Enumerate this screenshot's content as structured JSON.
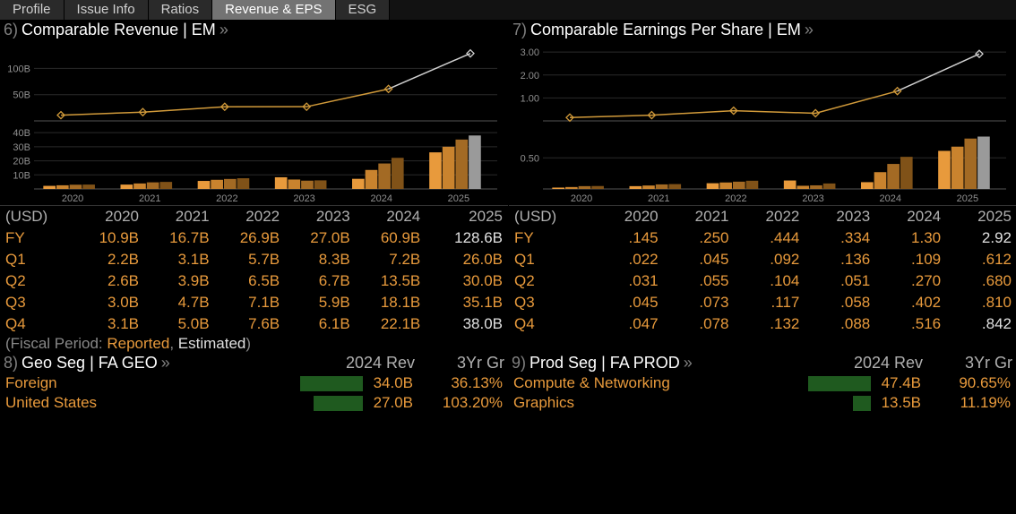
{
  "tabs": [
    {
      "label": "Profile",
      "active": false
    },
    {
      "label": "Issue Info",
      "active": false
    },
    {
      "label": "Ratios",
      "active": false
    },
    {
      "label": "Revenue & EPS",
      "active": true
    },
    {
      "label": "ESG",
      "active": false
    }
  ],
  "note_prefix": "(Fiscal Period: ",
  "note_reported": "Reported",
  "note_sep": ", ",
  "note_estimated": "Estimated",
  "note_suffix": ")",
  "rev": {
    "num": "6)",
    "title": "Comparable Revenue | EM",
    "line_chart": {
      "ytick_labels": [
        "50B",
        "100B"
      ],
      "ytick_vals": [
        50,
        100
      ],
      "ymax": 140,
      "years": [
        "2020",
        "2021",
        "2022",
        "2023",
        "2024",
        "2025"
      ],
      "values": [
        10.9,
        16.7,
        26.9,
        27.0,
        60.9,
        128.6
      ],
      "line_color": "#d19a3a",
      "est_color": "#d0d0d0",
      "est_from_index": 4
    },
    "bar_chart": {
      "ytick_labels": [
        "10B",
        "20B",
        "30B",
        "40B"
      ],
      "ytick_vals": [
        10,
        20,
        30,
        40
      ],
      "ymax": 42,
      "years": [
        "2020",
        "2021",
        "2022",
        "2023",
        "2024",
        "2025"
      ],
      "quarters": [
        [
          2.2,
          2.6,
          3.0,
          3.1
        ],
        [
          3.1,
          3.9,
          4.7,
          5.0
        ],
        [
          5.7,
          6.5,
          7.1,
          7.6
        ],
        [
          8.3,
          6.7,
          5.9,
          6.1
        ],
        [
          7.2,
          13.5,
          18.1,
          22.1
        ],
        [
          26.0,
          30.0,
          35.1,
          38.0
        ]
      ],
      "est_flags": [
        [
          0,
          0,
          0,
          0
        ],
        [
          0,
          0,
          0,
          0
        ],
        [
          0,
          0,
          0,
          0
        ],
        [
          0,
          0,
          0,
          0
        ],
        [
          0,
          0,
          0,
          0
        ],
        [
          0,
          0,
          0,
          1
        ]
      ],
      "colors": [
        "#e89a3c",
        "#c9832e",
        "#a36a24",
        "#805218"
      ],
      "est_color": "#9a9a9a"
    },
    "table": {
      "usd": "(USD)",
      "headers": [
        "2020",
        "2021",
        "2022",
        "2023",
        "2024",
        "2025"
      ],
      "rows": [
        {
          "label": "FY",
          "vals": [
            "10.9B",
            "16.7B",
            "26.9B",
            "27.0B",
            "60.9B",
            "128.6B"
          ],
          "est": [
            0,
            0,
            0,
            0,
            0,
            1
          ]
        },
        {
          "label": "Q1",
          "vals": [
            "2.2B",
            "3.1B",
            "5.7B",
            "8.3B",
            "7.2B",
            "26.0B"
          ],
          "est": [
            0,
            0,
            0,
            0,
            0,
            0
          ]
        },
        {
          "label": "Q2",
          "vals": [
            "2.6B",
            "3.9B",
            "6.5B",
            "6.7B",
            "13.5B",
            "30.0B"
          ],
          "est": [
            0,
            0,
            0,
            0,
            0,
            0
          ]
        },
        {
          "label": "Q3",
          "vals": [
            "3.0B",
            "4.7B",
            "7.1B",
            "5.9B",
            "18.1B",
            "35.1B"
          ],
          "est": [
            0,
            0,
            0,
            0,
            0,
            0
          ]
        },
        {
          "label": "Q4",
          "vals": [
            "3.1B",
            "5.0B",
            "7.6B",
            "6.1B",
            "22.1B",
            "38.0B"
          ],
          "est": [
            0,
            0,
            0,
            0,
            0,
            1
          ]
        }
      ]
    }
  },
  "eps": {
    "num": "7)",
    "title": "Comparable Earnings Per Share | EM",
    "line_chart": {
      "ytick_labels": [
        "1.00",
        "2.00",
        "3.00"
      ],
      "ytick_vals": [
        1,
        2,
        3
      ],
      "ymax": 3.2,
      "years": [
        "2020",
        "2021",
        "2022",
        "2023",
        "2024",
        "2025"
      ],
      "values": [
        0.145,
        0.25,
        0.444,
        0.334,
        1.3,
        2.92
      ],
      "line_color": "#d19a3a",
      "est_color": "#d0d0d0",
      "est_from_index": 4
    },
    "bar_chart": {
      "ytick_labels": [
        "0.50"
      ],
      "ytick_vals": [
        0.5
      ],
      "ymax": 0.95,
      "years": [
        "2020",
        "2021",
        "2022",
        "2023",
        "2024",
        "2025"
      ],
      "quarters": [
        [
          0.022,
          0.031,
          0.045,
          0.047
        ],
        [
          0.045,
          0.055,
          0.073,
          0.078
        ],
        [
          0.092,
          0.104,
          0.117,
          0.132
        ],
        [
          0.136,
          0.051,
          0.058,
          0.088
        ],
        [
          0.109,
          0.27,
          0.402,
          0.516
        ],
        [
          0.612,
          0.68,
          0.81,
          0.842
        ]
      ],
      "est_flags": [
        [
          0,
          0,
          0,
          0
        ],
        [
          0,
          0,
          0,
          0
        ],
        [
          0,
          0,
          0,
          0
        ],
        [
          0,
          0,
          0,
          0
        ],
        [
          0,
          0,
          0,
          0
        ],
        [
          0,
          0,
          0,
          1
        ]
      ],
      "colors": [
        "#e89a3c",
        "#c9832e",
        "#a36a24",
        "#805218"
      ],
      "est_color": "#9a9a9a"
    },
    "table": {
      "usd": "(USD)",
      "headers": [
        "2020",
        "2021",
        "2022",
        "2023",
        "2024",
        "2025"
      ],
      "rows": [
        {
          "label": "FY",
          "vals": [
            ".145",
            ".250",
            ".444",
            ".334",
            "1.30",
            "2.92"
          ],
          "est": [
            0,
            0,
            0,
            0,
            0,
            1
          ]
        },
        {
          "label": "Q1",
          "vals": [
            ".022",
            ".045",
            ".092",
            ".136",
            ".109",
            ".612"
          ],
          "est": [
            0,
            0,
            0,
            0,
            0,
            0
          ]
        },
        {
          "label": "Q2",
          "vals": [
            ".031",
            ".055",
            ".104",
            ".051",
            ".270",
            ".680"
          ],
          "est": [
            0,
            0,
            0,
            0,
            0,
            0
          ]
        },
        {
          "label": "Q3",
          "vals": [
            ".045",
            ".073",
            ".117",
            ".058",
            ".402",
            ".810"
          ],
          "est": [
            0,
            0,
            0,
            0,
            0,
            0
          ]
        },
        {
          "label": "Q4",
          "vals": [
            ".047",
            ".078",
            ".132",
            ".088",
            ".516",
            ".842"
          ],
          "est": [
            0,
            0,
            0,
            0,
            0,
            1
          ]
        }
      ]
    }
  },
  "geo": {
    "num": "8)",
    "title": "Geo Seg | FA GEO",
    "h_rev": "2024 Rev",
    "h_gr": "3Yr Gr",
    "rows": [
      {
        "name": "Foreign",
        "val": "34.0B",
        "bw": 70,
        "gr": "36.13%"
      },
      {
        "name": "United States",
        "val": "27.0B",
        "bw": 55,
        "gr": "103.20%"
      }
    ]
  },
  "prod": {
    "num": "9)",
    "title": "Prod Seg | FA PROD",
    "h_rev": "2024 Rev",
    "h_gr": "3Yr Gr",
    "rows": [
      {
        "name": "Compute & Networking",
        "val": "47.4B",
        "bw": 70,
        "gr": "90.65%"
      },
      {
        "name": "Graphics",
        "val": "13.5B",
        "bw": 20,
        "gr": "11.19%"
      }
    ]
  }
}
